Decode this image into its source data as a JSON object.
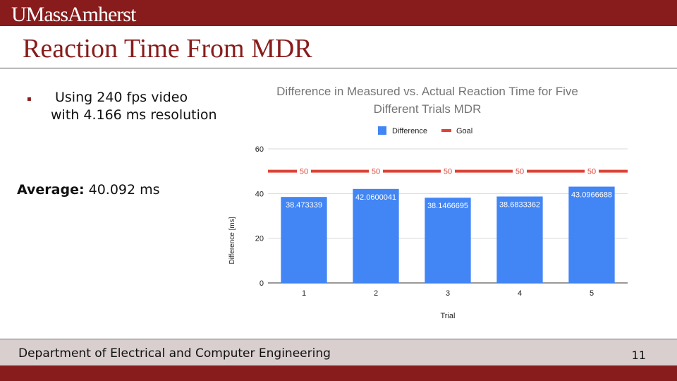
{
  "header": {
    "logo_text": "UMassAmherst"
  },
  "slide": {
    "title": "Reaction Time From MDR",
    "bullets": [
      "Using 240 fps video with 4.166 ms resolution"
    ],
    "average_label": "Average:",
    "average_value": "40.092 ms"
  },
  "footer": {
    "department": "Department of Electrical and Computer Engineering",
    "page_number": "11"
  },
  "colors": {
    "maroon": "#881c1c",
    "difference": "#4285f4",
    "goal": "#db4437"
  },
  "chart_data": {
    "type": "bar",
    "title": "Difference in Measured vs. Actual Reaction Time for Five Different Trials MDR",
    "title_lines": [
      "Difference in Measured vs. Actual Reaction Time for Five",
      "Different Trials MDR"
    ],
    "xlabel": "Trial",
    "ylabel": "Difference [ms]",
    "categories": [
      "1",
      "2",
      "3",
      "4",
      "5"
    ],
    "ylim": [
      0,
      60
    ],
    "yticks": [
      0,
      20,
      40,
      60
    ],
    "grid": true,
    "legend": "top",
    "series": [
      {
        "name": "Difference",
        "kind": "bar",
        "values": [
          38.473339,
          42.0600041,
          38.1466695,
          38.6833362,
          43.0966688
        ],
        "labels": [
          "38.473339",
          "42.0600041",
          "38.1466695",
          "38.6833362",
          "43.0966688"
        ]
      },
      {
        "name": "Goal",
        "kind": "line",
        "values": [
          50,
          50,
          50,
          50,
          50
        ],
        "labels": [
          "50",
          "50",
          "50",
          "50",
          "50"
        ]
      }
    ]
  }
}
